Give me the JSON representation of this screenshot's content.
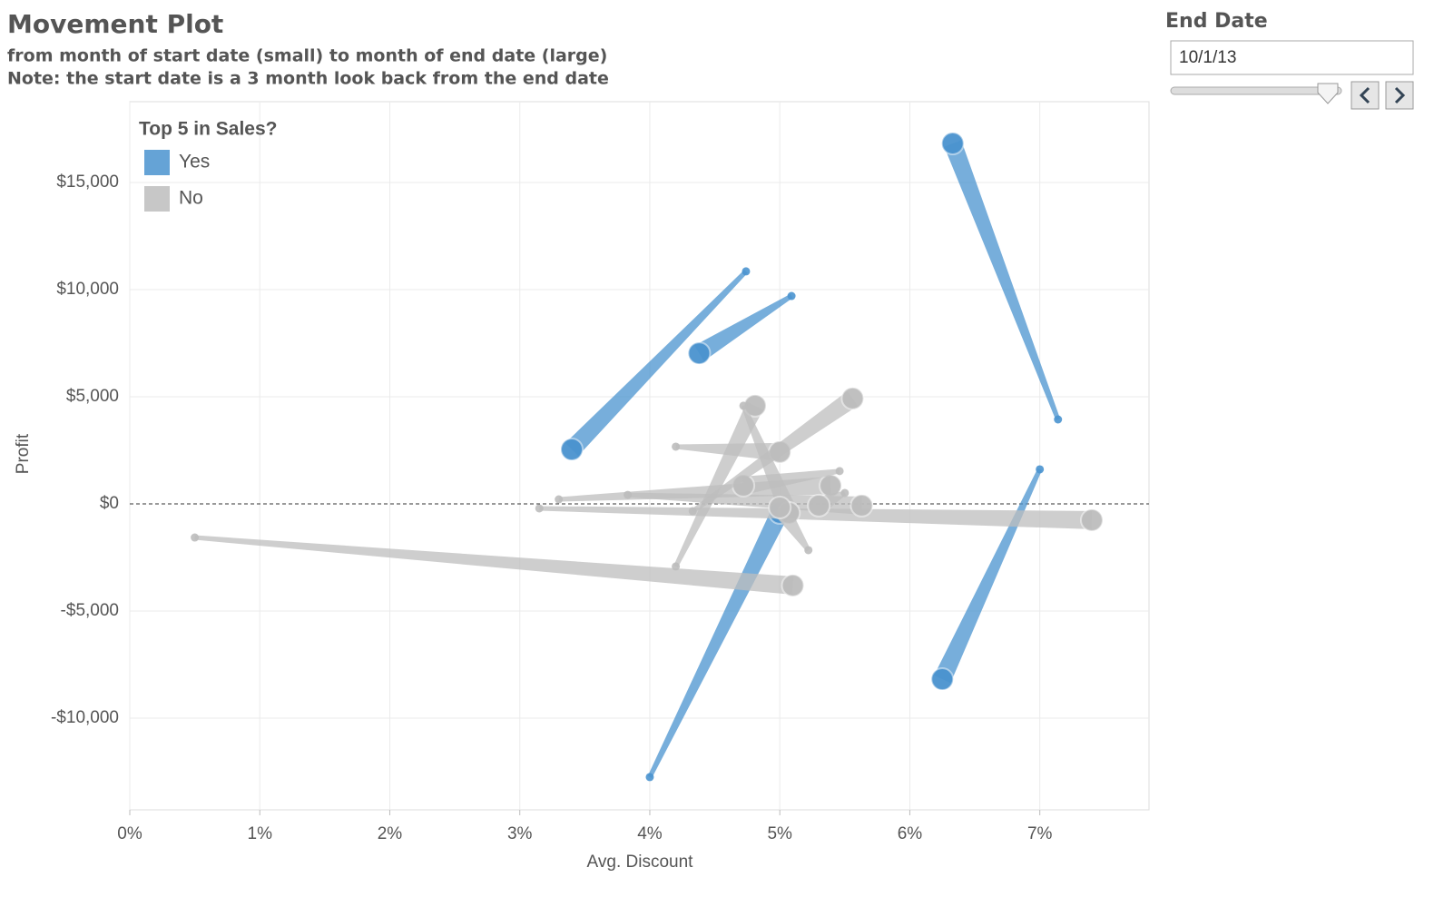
{
  "chart_data": {
    "type": "movement",
    "title": "Movement Plot",
    "subtitle": [
      "from month of start date (small) to month of end date (large)",
      "Note: the start date is a 3 month look back from the end date"
    ],
    "x_label": "Avg. Discount",
    "y_label": "Profit",
    "legend_title": "Top 5 in Sales?",
    "legend_position": "top-left",
    "grid": true,
    "zero_line": true,
    "xlim": [
      0,
      7.84
    ],
    "ylim": [
      -14280,
      18770
    ],
    "xticks": [
      {
        "value": 0,
        "label": "0%"
      },
      {
        "value": 1,
        "label": "1%"
      },
      {
        "value": 2,
        "label": "2%"
      },
      {
        "value": 3,
        "label": "3%"
      },
      {
        "value": 4,
        "label": "4%"
      },
      {
        "value": 5,
        "label": "5%"
      },
      {
        "value": 6,
        "label": "6%"
      },
      {
        "value": 7,
        "label": "7%"
      }
    ],
    "yticks": [
      {
        "value": -10000,
        "label": "-$10,000"
      },
      {
        "value": -5000,
        "label": "-$5,000"
      },
      {
        "value": 0,
        "label": "$0"
      },
      {
        "value": 5000,
        "label": "$5,000"
      },
      {
        "value": 10000,
        "label": "$10,000"
      },
      {
        "value": 15000,
        "label": "$15,000"
      }
    ],
    "series": [
      {
        "name": "Yes",
        "color": "#4a93cf",
        "start_x": [
          4.74,
          5.09,
          7.14,
          7.0,
          4.0
        ],
        "start_y": [
          10850,
          9700,
          3940,
          1610,
          -12750
        ],
        "end_x": [
          3.4,
          4.38,
          6.33,
          6.25,
          5.0
        ],
        "end_y": [
          2540,
          7030,
          16820,
          -8180,
          -420
        ]
      },
      {
        "name": "No",
        "color": "#bdbdbd",
        "start_x": [
          0.5,
          3.15,
          3.3,
          3.83,
          4.2,
          4.2,
          4.72,
          5.46,
          5.22,
          4.33,
          5.5
        ],
        "start_y": [
          -1570,
          -210,
          210,
          420,
          2670,
          -2920,
          4580,
          1530,
          -2160,
          -340,
          510
        ],
        "end_x": [
          5.1,
          7.4,
          5.39,
          5.63,
          5.0,
          4.81,
          5.07,
          4.72,
          5.0,
          5.56,
          5.3
        ],
        "end_y": [
          -3810,
          -760,
          850,
          -80,
          2420,
          4580,
          -420,
          850,
          -170,
          4920,
          -80
        ]
      }
    ]
  },
  "filter": {
    "label": "End Date",
    "value": "10/1/13"
  }
}
